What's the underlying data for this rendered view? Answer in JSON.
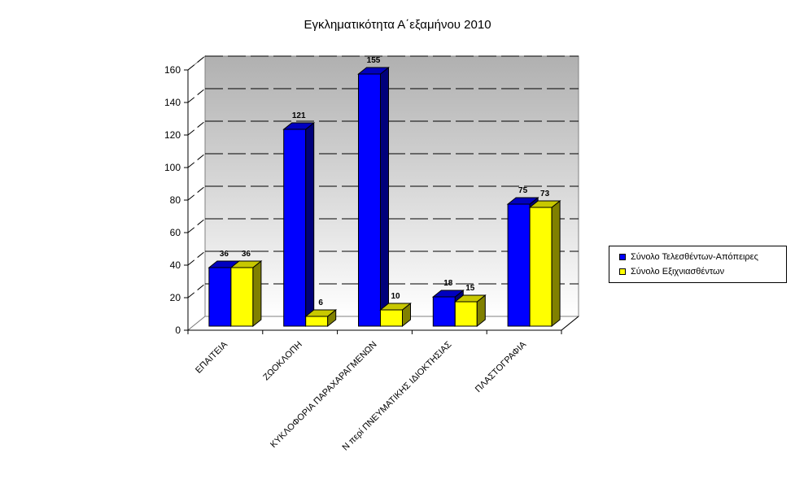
{
  "chart_data": {
    "type": "bar",
    "title": "Εγκληματικότητα Α΄εξαμήνου 2010",
    "categories": [
      "ΕΠΑΙΤΕΙΑ",
      "ΖΩΟΚΛΟΠΗ",
      "ΚΥΚΛΟΦΟΡΙΑ ΠΑΡΑΧΑΡΑΓΜΕΝΩΝ",
      "Ν περί ΠΝΕΥΜΑΤΙΚΗΣ ΙΔΙΟΚΤΗΣΙΑΣ",
      "ΠΛΑΣΤΟΓΡΑΦΙΑ"
    ],
    "series": [
      {
        "name": "Σύνολο Τελεσθέντων-Απόπειρες",
        "values": [
          36,
          121,
          155,
          18,
          75
        ],
        "color": "#0000ff",
        "side_color": "#00007a",
        "top_color": "#0000c0"
      },
      {
        "name": "Σύνολο Εξιχνιασθέντων",
        "values": [
          36,
          6,
          10,
          15,
          73
        ],
        "color": "#ffff00",
        "side_color": "#808000",
        "top_color": "#c8c800"
      }
    ],
    "ylim": [
      0,
      160
    ],
    "yticks": [
      0,
      20,
      40,
      60,
      80,
      100,
      120,
      140,
      160
    ],
    "grid": true,
    "legend_position": "right"
  }
}
